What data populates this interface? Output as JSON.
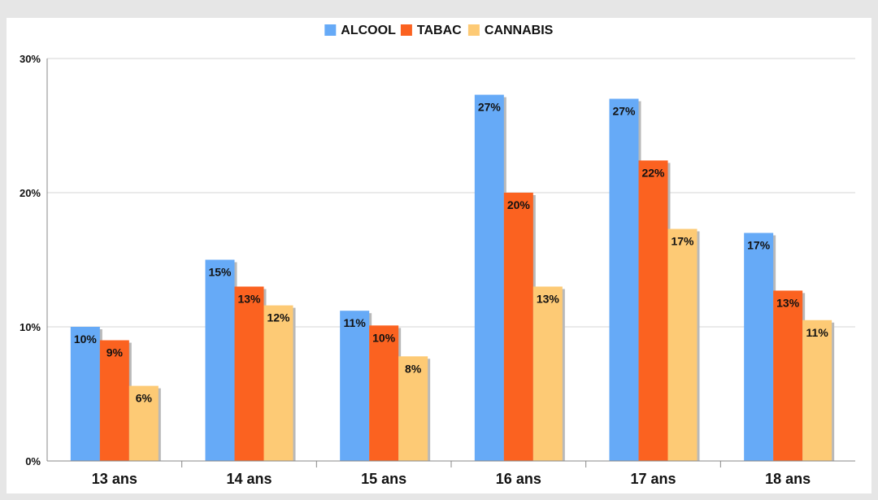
{
  "chart_data": {
    "type": "bar",
    "categories": [
      "13 ans",
      "14 ans",
      "15 ans",
      "16 ans",
      "17 ans",
      "18 ans"
    ],
    "series": [
      {
        "name": "ALCOOL",
        "color": "#66aaf7",
        "values": [
          10,
          15,
          11.2,
          27.3,
          27,
          17
        ],
        "labels": [
          "10%",
          "15%",
          "11%",
          "27%",
          "27%",
          "17%"
        ]
      },
      {
        "name": "TABAC",
        "color": "#fb6220",
        "values": [
          9,
          13,
          10.1,
          20,
          22.4,
          12.7
        ],
        "labels": [
          "9%",
          "13%",
          "10%",
          "20%",
          "22%",
          "13%"
        ]
      },
      {
        "name": "CANNABIS",
        "color": "#fdca75",
        "values": [
          5.6,
          11.6,
          7.8,
          13,
          17.3,
          10.5
        ],
        "labels": [
          "6%",
          "12%",
          "8%",
          "13%",
          "17%",
          "11%"
        ]
      }
    ],
    "ylim": [
      0,
      30
    ],
    "yticks": [
      0,
      10,
      20,
      30
    ],
    "ytick_labels": [
      "0%",
      "10%",
      "20%",
      "30%"
    ],
    "grid": true,
    "legend": "top-center"
  }
}
